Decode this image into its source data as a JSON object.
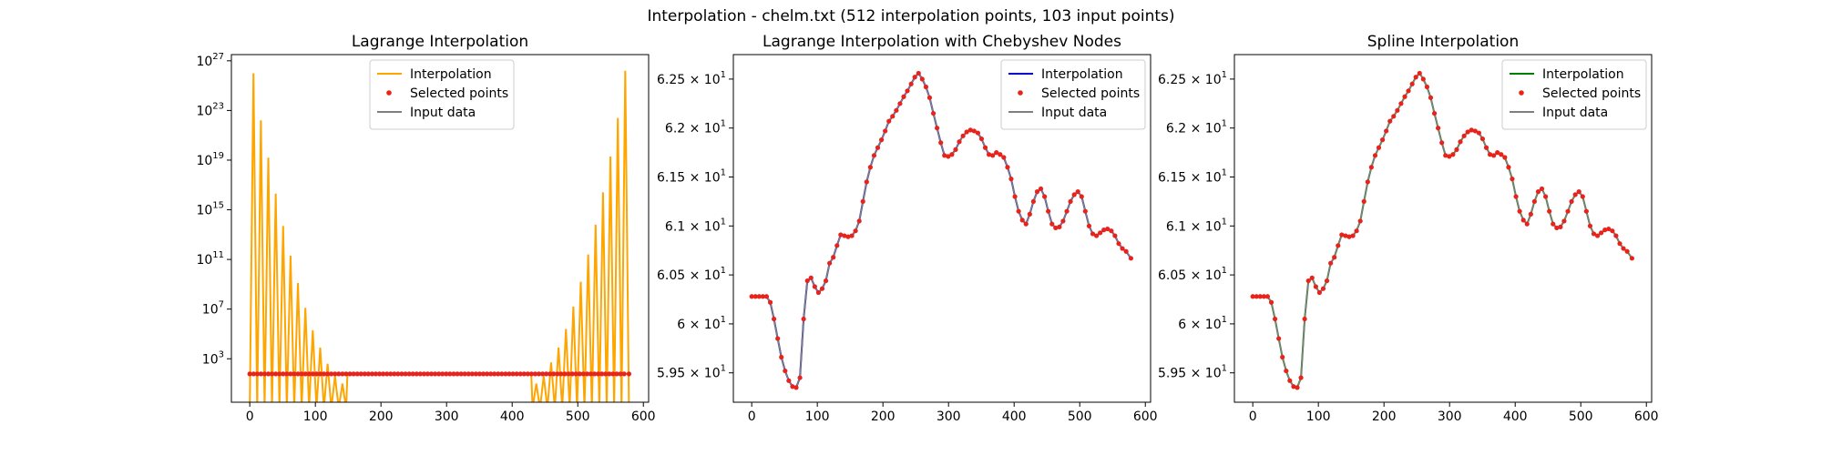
{
  "figure": {
    "suptitle": "Interpolation - chelm.txt (512 interpolation points, 103 input points)"
  },
  "colors": {
    "lagrange": "#ffa500",
    "chebyshev": "#0000cc",
    "spline": "#008000",
    "input": "#7f7f7f",
    "points": "#e8231c"
  },
  "chart_data": [
    {
      "type": "line",
      "title": "Lagrange Interpolation",
      "xlabel": "",
      "ylabel": "",
      "xlim": [
        -28,
        608
      ],
      "ylim_log10": [
        -0.5,
        27.5
      ],
      "yscale": "log",
      "x_ticks": [
        0,
        100,
        200,
        300,
        400,
        500,
        600
      ],
      "y_ticks": [
        {
          "base": "10",
          "exp": "27",
          "log": 27
        },
        {
          "base": "10",
          "exp": "23",
          "log": 23
        },
        {
          "base": "10",
          "exp": "19",
          "log": 19
        },
        {
          "base": "10",
          "exp": "15",
          "log": 15
        },
        {
          "base": "10",
          "exp": "11",
          "log": 11
        },
        {
          "base": "10",
          "exp": "7",
          "log": 7
        },
        {
          "base": "10",
          "exp": "3",
          "log": 3
        }
      ],
      "grid": false,
      "legend": {
        "position": "top-center",
        "entries": [
          "Interpolation",
          "Selected points",
          "Input data"
        ]
      },
      "series": [
        {
          "name": "Interpolation",
          "color": "#ffa500",
          "style": "line",
          "description_peaks_left_log10": [
            26,
            22.2,
            19.2,
            16.3,
            13.7,
            11.3,
            9.1,
            7.1,
            5.3,
            3.9,
            2.6,
            1.6,
            1.0
          ],
          "description_peaks_right_log10": [
            1.0,
            1.6,
            2.7,
            3.9,
            5.4,
            7.2,
            9.2,
            11.4,
            13.8,
            16.4,
            19.3,
            22.4,
            26.2
          ],
          "input_level_log10": 1.78,
          "x_range": [
            0,
            578
          ]
        },
        {
          "name": "Selected points",
          "color": "#e8231c",
          "style": "markers"
        },
        {
          "name": "Input data",
          "color": "#7f7f7f",
          "style": "line"
        }
      ]
    },
    {
      "type": "line",
      "title": "Lagrange Interpolation with Chebyshev Nodes",
      "xlabel": "",
      "ylabel": "",
      "xlim": [
        -28,
        608
      ],
      "ylim": [
        59.2,
        62.75
      ],
      "x_ticks": [
        0,
        100,
        200,
        300,
        400,
        500,
        600
      ],
      "y_ticks": [
        {
          "value": 59.5,
          "mant": "5.95",
          "exp": "1"
        },
        {
          "value": 60.0,
          "mant": "6",
          "exp": "1"
        },
        {
          "value": 60.5,
          "mant": "6.05",
          "exp": "1"
        },
        {
          "value": 61.0,
          "mant": "6.1",
          "exp": "1"
        },
        {
          "value": 61.5,
          "mant": "6.15",
          "exp": "1"
        },
        {
          "value": 62.0,
          "mant": "6.2",
          "exp": "1"
        },
        {
          "value": 62.5,
          "mant": "6.25",
          "exp": "1"
        }
      ],
      "grid": false,
      "legend": {
        "position": "top-right",
        "entries": [
          "Interpolation",
          "Selected points",
          "Input data"
        ]
      },
      "series": [
        {
          "name": "Interpolation",
          "color": "#0000cc",
          "style": "line"
        },
        {
          "name": "Selected points",
          "color": "#e8231c",
          "style": "markers"
        },
        {
          "name": "Input data",
          "color": "#7f7f7f",
          "style": "line"
        }
      ]
    },
    {
      "type": "line",
      "title": "Spline Interpolation",
      "xlabel": "",
      "ylabel": "",
      "xlim": [
        -28,
        608
      ],
      "ylim": [
        59.2,
        62.75
      ],
      "x_ticks": [
        0,
        100,
        200,
        300,
        400,
        500,
        600
      ],
      "y_ticks": [
        {
          "value": 59.5,
          "mant": "5.95",
          "exp": "1"
        },
        {
          "value": 60.0,
          "mant": "6",
          "exp": "1"
        },
        {
          "value": 60.5,
          "mant": "6.05",
          "exp": "1"
        },
        {
          "value": 61.0,
          "mant": "6.1",
          "exp": "1"
        },
        {
          "value": 61.5,
          "mant": "6.15",
          "exp": "1"
        },
        {
          "value": 62.0,
          "mant": "6.2",
          "exp": "1"
        },
        {
          "value": 62.5,
          "mant": "6.25",
          "exp": "1"
        }
      ],
      "grid": false,
      "legend": {
        "position": "top-right",
        "entries": [
          "Interpolation",
          "Selected points",
          "Input data"
        ]
      },
      "series": [
        {
          "name": "Interpolation",
          "color": "#008000",
          "style": "line"
        },
        {
          "name": "Selected points",
          "color": "#e8231c",
          "style": "markers"
        },
        {
          "name": "Input data",
          "color": "#7f7f7f",
          "style": "line"
        }
      ]
    }
  ],
  "profile": {
    "x": [
      0,
      5.7,
      11.3,
      17,
      22.6,
      28.3,
      33.9,
      39.6,
      45.2,
      50.9,
      56.5,
      62.2,
      67.8,
      73.5,
      79.1,
      84.8,
      90.4,
      96.1,
      101.7,
      107.4,
      113,
      118.7,
      124.3,
      130,
      135.6,
      141.3,
      146.9,
      152.6,
      158.2,
      163.9,
      169.5,
      175.2,
      180.8,
      186.5,
      192.1,
      197.8,
      203.4,
      209.1,
      214.7,
      220.4,
      226,
      231.7,
      237.3,
      243,
      248.6,
      254.3,
      259.9,
      265.6,
      271.2,
      276.9,
      282.5,
      288.2,
      293.8,
      299.5,
      305.1,
      310.8,
      316.4,
      322.1,
      327.7,
      333.4,
      339,
      344.7,
      350.3,
      356,
      361.6,
      367.3,
      372.9,
      378.6,
      384.2,
      389.9,
      395.5,
      401.2,
      406.8,
      412.5,
      418.1,
      423.8,
      429.4,
      435.1,
      440.7,
      446.4,
      452,
      457.7,
      463.3,
      469,
      474.6,
      480.3,
      485.9,
      491.6,
      497.2,
      502.9,
      508.5,
      514.2,
      519.8,
      525.5,
      531.1,
      536.8,
      542.4,
      548.1,
      553.7,
      559.4,
      565,
      570.7,
      578
    ],
    "y": [
      60.28,
      60.28,
      60.28,
      60.28,
      60.28,
      60.22,
      60.05,
      59.85,
      59.66,
      59.52,
      59.42,
      59.36,
      59.35,
      59.45,
      60.05,
      60.44,
      60.47,
      60.38,
      60.32,
      60.36,
      60.44,
      60.62,
      60.68,
      60.8,
      60.91,
      60.9,
      60.89,
      60.9,
      60.95,
      61.05,
      61.25,
      61.45,
      61.6,
      61.72,
      61.8,
      61.88,
      61.97,
      62.07,
      62.12,
      62.18,
      62.25,
      62.32,
      62.38,
      62.45,
      62.52,
      62.56,
      62.5,
      62.42,
      62.31,
      62.15,
      62.0,
      61.85,
      61.72,
      61.71,
      61.73,
      61.78,
      61.86,
      61.92,
      61.96,
      61.98,
      61.97,
      61.95,
      61.89,
      61.8,
      61.73,
      61.72,
      61.75,
      61.73,
      61.7,
      61.6,
      61.48,
      61.3,
      61.15,
      61.06,
      61.02,
      61.12,
      61.25,
      61.35,
      61.38,
      61.3,
      61.15,
      61.02,
      60.98,
      60.99,
      61.05,
      61.15,
      61.25,
      61.32,
      61.35,
      61.3,
      61.15,
      61.0,
      60.92,
      60.9,
      60.93,
      60.96,
      60.97,
      60.95,
      60.9,
      60.82,
      60.77,
      60.74,
      60.67
    ]
  }
}
